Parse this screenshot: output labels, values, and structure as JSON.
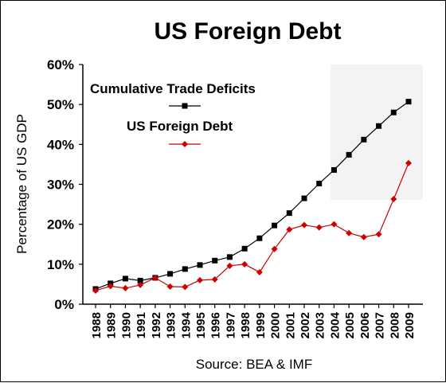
{
  "chart_data": {
    "type": "line",
    "title": "US Foreign Debt",
    "ylabel": "Percentage of US GDP",
    "xlabel": "",
    "source": "Source: BEA & IMF",
    "ylim": [
      0,
      60
    ],
    "yticks": [
      "0%",
      "10%",
      "20%",
      "30%",
      "40%",
      "50%",
      "60%"
    ],
    "legend_position": "top-left",
    "grid": false,
    "categories": [
      "1988",
      "1989",
      "1990",
      "1991",
      "1992",
      "1993",
      "1994",
      "1995",
      "1996",
      "1997",
      "1998",
      "1999",
      "2000",
      "2001",
      "2002",
      "2003",
      "2004",
      "2005",
      "2006",
      "2007",
      "2008",
      "2009"
    ],
    "series": [
      {
        "name": "Cumulative Trade Deficits",
        "color": "#000000",
        "marker": "square",
        "values": [
          3.8,
          5.2,
          6.4,
          5.9,
          6.6,
          7.6,
          8.8,
          9.8,
          10.9,
          11.8,
          13.9,
          16.5,
          19.7,
          22.8,
          26.5,
          30.2,
          33.6,
          37.4,
          41.2,
          44.6,
          48.0,
          50.7
        ]
      },
      {
        "name": "US Foreign Debt",
        "color": "#cc0000",
        "marker": "diamond",
        "values": [
          3.4,
          4.5,
          4.0,
          4.8,
          6.6,
          4.4,
          4.3,
          6.0,
          6.2,
          9.6,
          10.0,
          8.0,
          13.8,
          18.7,
          19.8,
          19.2,
          20.0,
          17.8,
          16.8,
          17.5,
          26.3,
          35.3
        ]
      }
    ]
  }
}
